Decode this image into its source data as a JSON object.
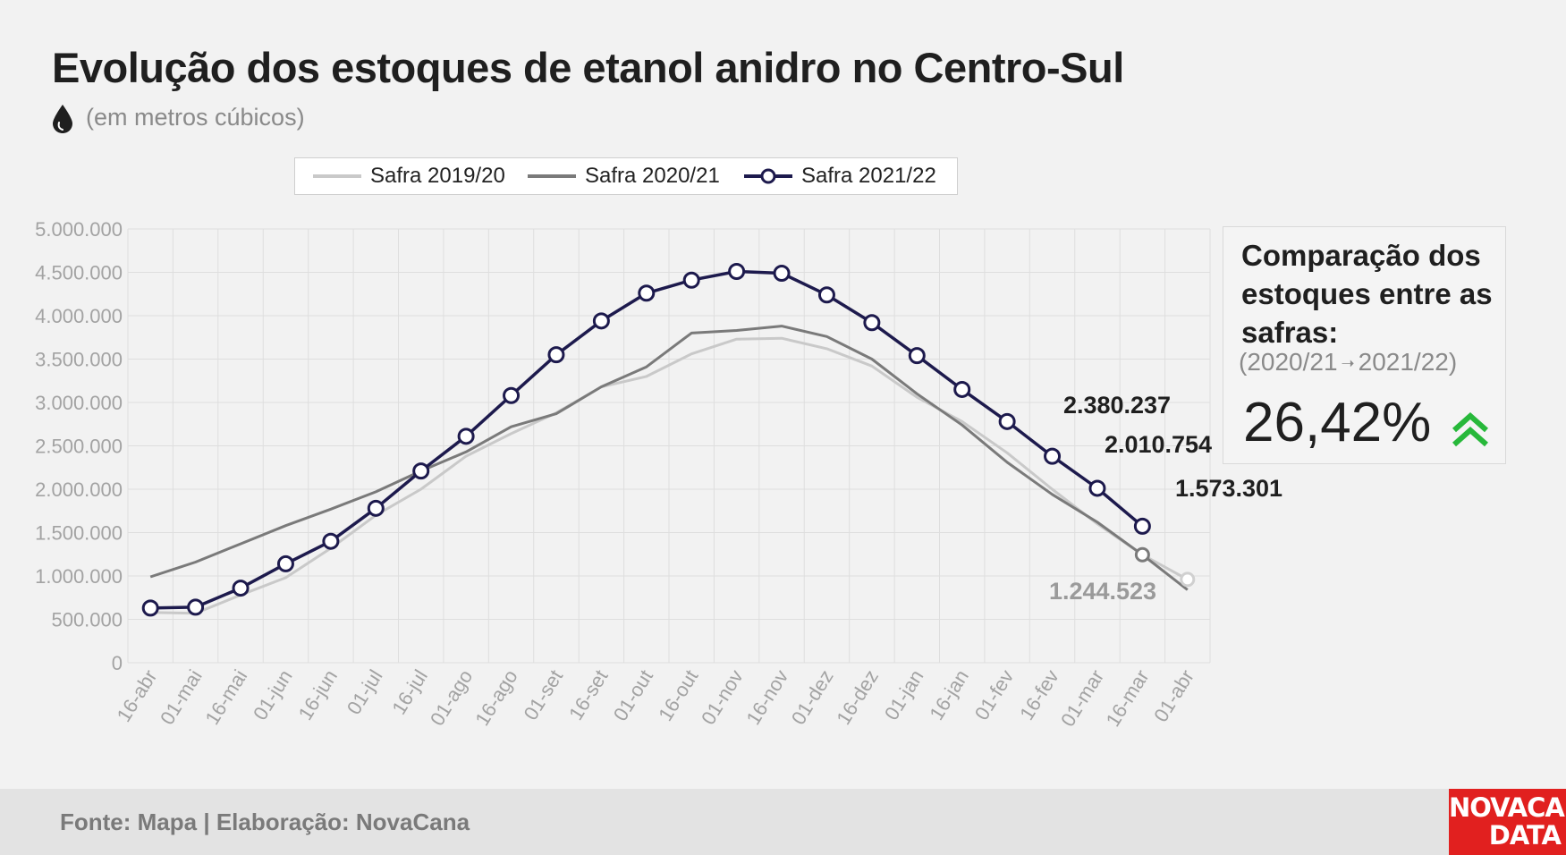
{
  "header": {
    "title": "Evolução dos estoques de etanol anidro no Centro-Sul",
    "subtitle": "(em metros cúbicos)"
  },
  "legend": {
    "items": [
      {
        "label": "Safra 2019/20",
        "color": "#c9c9c9"
      },
      {
        "label": "Safra 2020/21",
        "color": "#7a7a7a"
      },
      {
        "label": "Safra 2021/22",
        "color": "#1d1a4d"
      }
    ]
  },
  "chart_data": {
    "type": "line",
    "title": "Evolução dos estoques de etanol anidro no Centro-Sul",
    "ylabel": "",
    "xlabel": "",
    "ylim": [
      0,
      5000000
    ],
    "y_ticks": [
      "0",
      "500.000",
      "1.000.000",
      "1.500.000",
      "2.000.000",
      "2.500.000",
      "3.000.000",
      "3.500.000",
      "4.000.000",
      "4.500.000",
      "5.000.000"
    ],
    "categories": [
      "16-abr",
      "01-mai",
      "16-mai",
      "01-jun",
      "16-jun",
      "01-jul",
      "16-jul",
      "01-ago",
      "16-ago",
      "01-set",
      "16-set",
      "01-out",
      "16-out",
      "01-nov",
      "16-nov",
      "01-dez",
      "16-dez",
      "01-jan",
      "16-jan",
      "01-fev",
      "16-fev",
      "01-mar",
      "16-mar",
      "01-abr"
    ],
    "grid": true,
    "legend_position": "top-center",
    "series": [
      {
        "name": "Safra 2019/20",
        "color": "#c9c9c9",
        "values": [
          580000,
          570000,
          780000,
          980000,
          1320000,
          1700000,
          2000000,
          2380000,
          2640000,
          2880000,
          3180000,
          3300000,
          3560000,
          3730000,
          3740000,
          3620000,
          3420000,
          3060000,
          2780000,
          2420000,
          2000000,
          1600000,
          1244523,
          960000
        ]
      },
      {
        "name": "Safra 2020/21",
        "color": "#7a7a7a",
        "values": [
          990000,
          1160000,
          1370000,
          1580000,
          1770000,
          1970000,
          2210000,
          2430000,
          2720000,
          2870000,
          3180000,
          3410000,
          3800000,
          3830000,
          3880000,
          3760000,
          3500000,
          3100000,
          2740000,
          2310000,
          1940000,
          1620000,
          1244523,
          840000
        ]
      },
      {
        "name": "Safra 2021/22",
        "color": "#1d1a4d",
        "values": [
          630000,
          640000,
          860000,
          1140000,
          1400000,
          1780000,
          2210000,
          2610000,
          3080000,
          3550000,
          3940000,
          4260000,
          4410000,
          4510000,
          4490000,
          4240000,
          3920000,
          3540000,
          3150000,
          2780000,
          2380237,
          2010754,
          1573301,
          null
        ]
      }
    ],
    "annotations": [
      {
        "text": "2.380.237",
        "color": "#1f1f1f"
      },
      {
        "text": "2.010.754",
        "color": "#1f1f1f"
      },
      {
        "text": "1.573.301",
        "color": "#1f1f1f"
      },
      {
        "text": "1.244.523",
        "color": "#9a9a9a"
      }
    ]
  },
  "card": {
    "title": "Comparação dos estoques entre as safras:",
    "subtitle_from": "(2020/21",
    "subtitle_to": "2021/22)",
    "value": "26,42%",
    "arrow_color": "#27b83a"
  },
  "footer": {
    "source": "Fonte: Mapa | Elaboração: NovaCana"
  },
  "logo": {
    "line1": "NOVACANA",
    "line2": "DATA",
    "color": "#e1201f"
  }
}
